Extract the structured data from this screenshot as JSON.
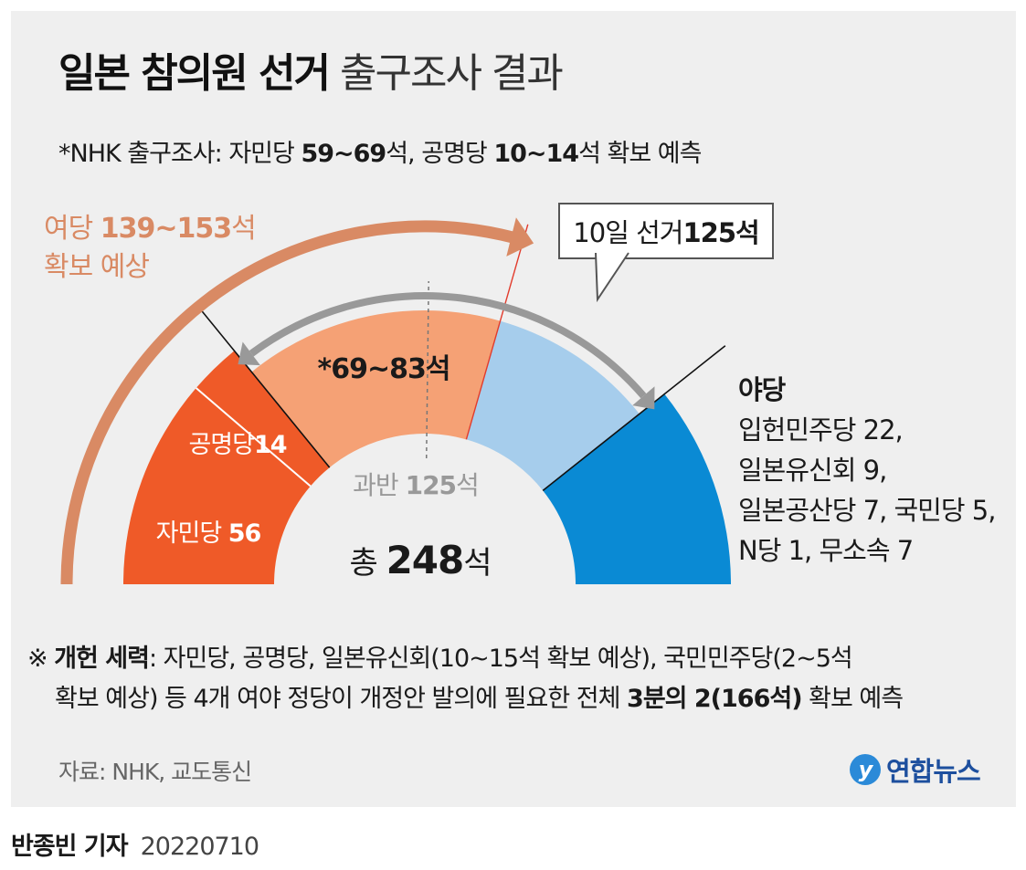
{
  "title": {
    "bold": "일본 참의원 선거",
    "normal": "출구조사 결과"
  },
  "nhk_line": {
    "prefix": "*NHK 출구조사: 자민당 ",
    "ldp_range": "59~69",
    "mid": "석, 공명당 ",
    "komeito_range": "10~14",
    "suffix": "석 확보 예측"
  },
  "ruling_projection": {
    "line1_prefix": "여당 ",
    "line1_value": "139~153",
    "line1_suffix": "석",
    "line2": "확보 예상"
  },
  "callout": {
    "prefix": "10일 선거 ",
    "value": "125석"
  },
  "opposition": {
    "heading": "야당",
    "lines": [
      "입헌민주당 22,",
      "일본유신회 9,",
      "일본공산당 7, 국민당 5,",
      "N당 1,  무소속 7"
    ]
  },
  "note": {
    "mark": "※",
    "bold_label": "개헌 세력",
    "line1_rest": ": 자민당, 공명당, 일본유신회(10~15석 확보 예상), 국민민주당(2~5석",
    "line2_prefix": "확보 예상) 등 4개 여야 정당이 개정안 발의에 필요한 전체 ",
    "line2_bold": "3분의 2(166석)",
    "line2_suffix": " 확보 예측"
  },
  "source": "자료: NHK, 교도통신",
  "logo": "연합뉴스",
  "byline": {
    "name": "반종빈 기자",
    "date": "20220710"
  },
  "colors": {
    "ldp": "#ef5a28",
    "komeito": "#ef5a28",
    "ruling_new": "#f5a175",
    "opp_new": "#a6cdec",
    "opp_hold": "#0a8ad4",
    "arrow_orange": "#d98a64",
    "arrow_gray": "#999999",
    "panel_bg": "#efefef"
  },
  "chart_data": {
    "type": "half-donut",
    "title": "",
    "total_label": {
      "prefix": "총 ",
      "value": "248",
      "suffix": "석"
    },
    "majority_label": {
      "prefix": "과반 ",
      "value": "125",
      "suffix": "석"
    },
    "total_seats": 248,
    "majority": 125,
    "segments": [
      {
        "name": "자민당",
        "seats": 56,
        "label_name": "자민당 ",
        "label_value": "56",
        "group": "ruling_hold"
      },
      {
        "name": "공명당",
        "seats": 14,
        "label_name": "공명당",
        "label_value": "14",
        "group": "ruling_hold"
      },
      {
        "name": "여당 확보 예상",
        "seats": 76,
        "label_text": "*69~83석",
        "group": "ruling_new"
      },
      {
        "name": "야당 선거",
        "seats": 49,
        "group": "opp_new"
      },
      {
        "name": "야당",
        "seats": 53,
        "group": "opp_hold"
      }
    ]
  }
}
